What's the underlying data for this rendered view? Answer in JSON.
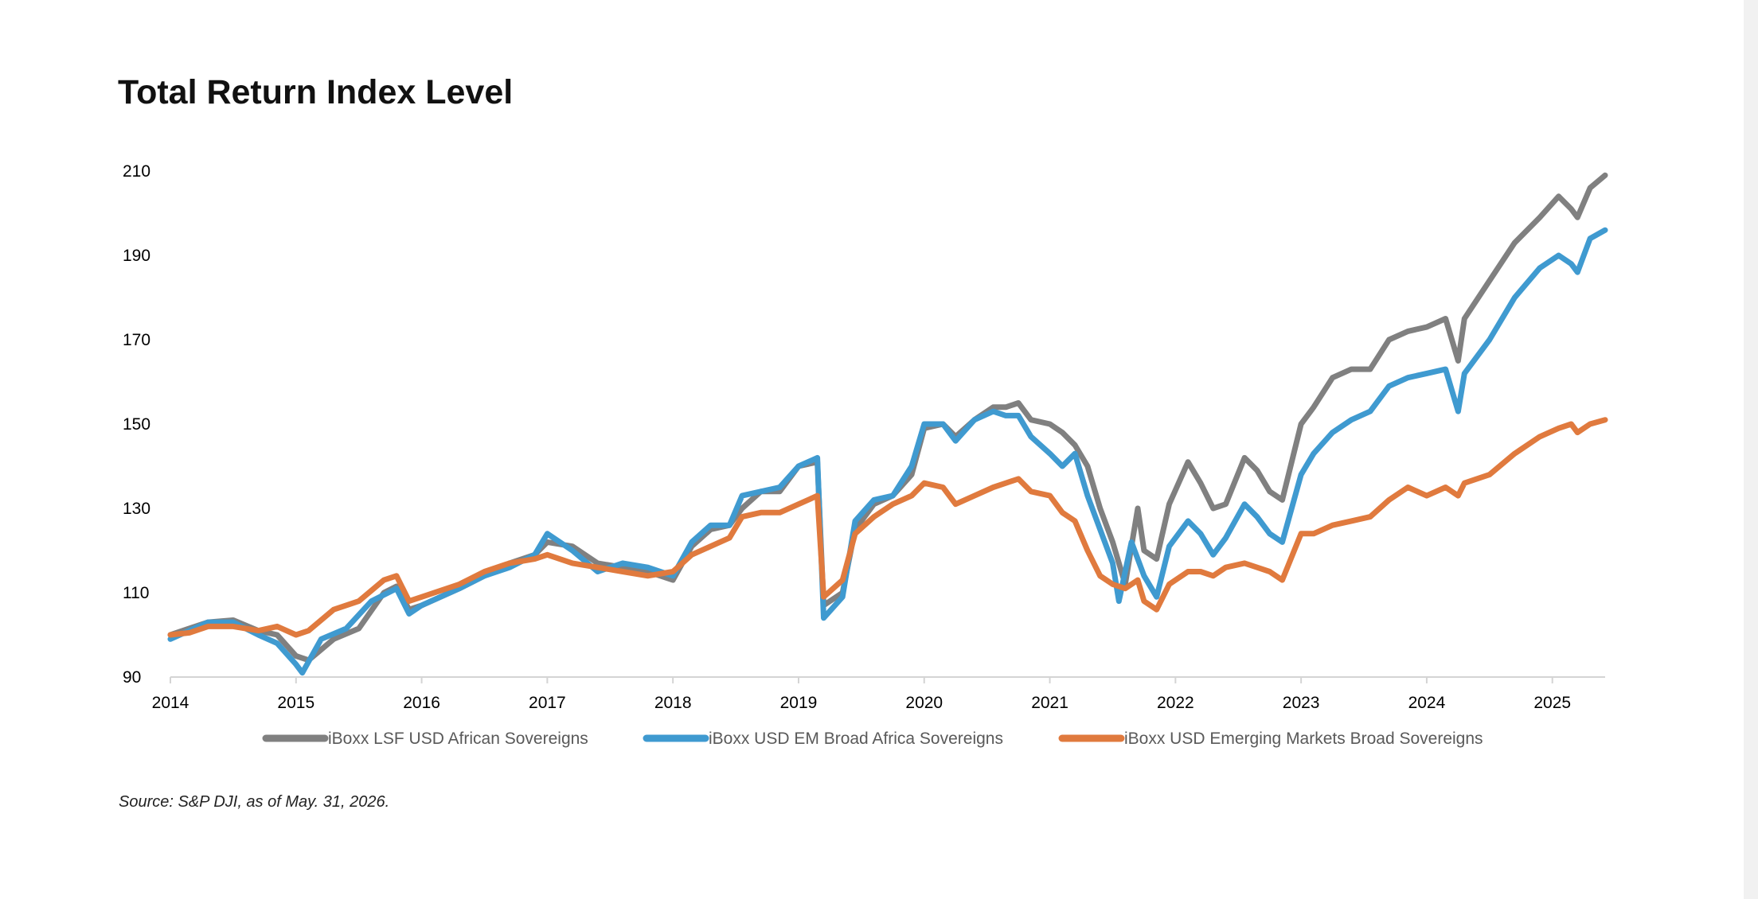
{
  "chart_data": {
    "type": "line",
    "title": "Total Return Index Level",
    "source": "Source: S&P DJI, as of May. 31, 2026.",
    "xlabel": "",
    "ylabel": "",
    "xlim": [
      2014.0,
      2025.42
    ],
    "ylim": [
      90,
      210
    ],
    "x_ticks": [
      "2014",
      "2015",
      "2016",
      "2017",
      "2018",
      "2019",
      "2020",
      "2021",
      "2022",
      "2023",
      "2024",
      "2025"
    ],
    "y_ticks": [
      "90",
      "110",
      "130",
      "150",
      "170",
      "190",
      "210"
    ],
    "grid": false,
    "legend_position": "bottom",
    "series": [
      {
        "name": "iBoxx LSF USD African Sovereigns",
        "color": "#808080",
        "points": [
          [
            2014.0,
            100
          ],
          [
            2014.15,
            101.5
          ],
          [
            2014.3,
            103
          ],
          [
            2014.5,
            103.5
          ],
          [
            2014.7,
            101
          ],
          [
            2014.85,
            100
          ],
          [
            2015.0,
            95
          ],
          [
            2015.1,
            94
          ],
          [
            2015.3,
            99
          ],
          [
            2015.5,
            101.5
          ],
          [
            2015.7,
            110
          ],
          [
            2015.8,
            111.5
          ],
          [
            2015.9,
            106
          ],
          [
            2016.0,
            107
          ],
          [
            2016.3,
            111
          ],
          [
            2016.5,
            114
          ],
          [
            2016.7,
            117
          ],
          [
            2016.9,
            119
          ],
          [
            2017.0,
            122
          ],
          [
            2017.2,
            121
          ],
          [
            2017.4,
            117
          ],
          [
            2017.6,
            116
          ],
          [
            2017.8,
            115
          ],
          [
            2018.0,
            113
          ],
          [
            2018.15,
            121
          ],
          [
            2018.3,
            125
          ],
          [
            2018.45,
            126
          ],
          [
            2018.55,
            130
          ],
          [
            2018.7,
            134
          ],
          [
            2018.85,
            134
          ],
          [
            2019.0,
            140
          ],
          [
            2019.15,
            141
          ],
          [
            2019.2,
            107
          ],
          [
            2019.35,
            110
          ],
          [
            2019.45,
            125
          ],
          [
            2019.6,
            131
          ],
          [
            2019.75,
            133
          ],
          [
            2019.9,
            138
          ],
          [
            2020.0,
            149
          ],
          [
            2020.15,
            150
          ],
          [
            2020.25,
            147
          ],
          [
            2020.4,
            151
          ],
          [
            2020.55,
            154
          ],
          [
            2020.65,
            154
          ],
          [
            2020.75,
            155
          ],
          [
            2020.85,
            151
          ],
          [
            2021.0,
            150
          ],
          [
            2021.1,
            148
          ],
          [
            2021.2,
            145
          ],
          [
            2021.3,
            140
          ],
          [
            2021.4,
            130
          ],
          [
            2021.5,
            122
          ],
          [
            2021.6,
            112
          ],
          [
            2021.7,
            130
          ],
          [
            2021.75,
            120
          ],
          [
            2021.85,
            118
          ],
          [
            2021.95,
            131
          ],
          [
            2022.1,
            141
          ],
          [
            2022.2,
            136
          ],
          [
            2022.3,
            130
          ],
          [
            2022.4,
            131
          ],
          [
            2022.55,
            142
          ],
          [
            2022.65,
            139
          ],
          [
            2022.75,
            134
          ],
          [
            2022.85,
            132
          ],
          [
            2023.0,
            150
          ],
          [
            2023.1,
            154
          ],
          [
            2023.25,
            161
          ],
          [
            2023.4,
            163
          ],
          [
            2023.55,
            163
          ],
          [
            2023.7,
            170
          ],
          [
            2023.85,
            172
          ],
          [
            2024.0,
            173
          ],
          [
            2024.15,
            175
          ],
          [
            2024.25,
            165
          ],
          [
            2024.3,
            175
          ],
          [
            2024.5,
            184
          ],
          [
            2024.7,
            193
          ],
          [
            2024.9,
            199
          ],
          [
            2025.05,
            204
          ],
          [
            2025.15,
            201
          ],
          [
            2025.2,
            199
          ],
          [
            2025.3,
            206
          ],
          [
            2025.42,
            209
          ]
        ]
      },
      {
        "name": "iBoxx USD EM Broad Africa Sovereigns",
        "color": "#3f9ad0",
        "points": [
          [
            2014.0,
            99
          ],
          [
            2014.15,
            101
          ],
          [
            2014.3,
            103
          ],
          [
            2014.5,
            103
          ],
          [
            2014.7,
            100
          ],
          [
            2014.85,
            98
          ],
          [
            2015.0,
            93
          ],
          [
            2015.05,
            91
          ],
          [
            2015.2,
            99
          ],
          [
            2015.4,
            101.5
          ],
          [
            2015.6,
            108
          ],
          [
            2015.8,
            111
          ],
          [
            2015.9,
            105
          ],
          [
            2016.0,
            107
          ],
          [
            2016.3,
            111
          ],
          [
            2016.5,
            114
          ],
          [
            2016.7,
            116
          ],
          [
            2016.9,
            119
          ],
          [
            2017.0,
            124
          ],
          [
            2017.2,
            120
          ],
          [
            2017.4,
            115
          ],
          [
            2017.6,
            117
          ],
          [
            2017.8,
            116
          ],
          [
            2018.0,
            114
          ],
          [
            2018.15,
            122
          ],
          [
            2018.3,
            126
          ],
          [
            2018.45,
            126
          ],
          [
            2018.55,
            133
          ],
          [
            2018.7,
            134
          ],
          [
            2018.85,
            135
          ],
          [
            2019.0,
            140
          ],
          [
            2019.15,
            142
          ],
          [
            2019.2,
            104
          ],
          [
            2019.35,
            109
          ],
          [
            2019.45,
            127
          ],
          [
            2019.6,
            132
          ],
          [
            2019.75,
            133
          ],
          [
            2019.9,
            140
          ],
          [
            2020.0,
            150
          ],
          [
            2020.15,
            150
          ],
          [
            2020.25,
            146
          ],
          [
            2020.4,
            151
          ],
          [
            2020.55,
            153
          ],
          [
            2020.65,
            152
          ],
          [
            2020.75,
            152
          ],
          [
            2020.85,
            147
          ],
          [
            2021.0,
            143
          ],
          [
            2021.1,
            140
          ],
          [
            2021.2,
            143
          ],
          [
            2021.3,
            133
          ],
          [
            2021.4,
            125
          ],
          [
            2021.5,
            117
          ],
          [
            2021.55,
            108
          ],
          [
            2021.65,
            122
          ],
          [
            2021.75,
            114
          ],
          [
            2021.85,
            109
          ],
          [
            2021.95,
            121
          ],
          [
            2022.1,
            127
          ],
          [
            2022.2,
            124
          ],
          [
            2022.3,
            119
          ],
          [
            2022.4,
            123
          ],
          [
            2022.55,
            131
          ],
          [
            2022.65,
            128
          ],
          [
            2022.75,
            124
          ],
          [
            2022.85,
            122
          ],
          [
            2023.0,
            138
          ],
          [
            2023.1,
            143
          ],
          [
            2023.25,
            148
          ],
          [
            2023.4,
            151
          ],
          [
            2023.55,
            153
          ],
          [
            2023.7,
            159
          ],
          [
            2023.85,
            161
          ],
          [
            2024.0,
            162
          ],
          [
            2024.15,
            163
          ],
          [
            2024.25,
            153
          ],
          [
            2024.3,
            162
          ],
          [
            2024.5,
            170
          ],
          [
            2024.7,
            180
          ],
          [
            2024.9,
            187
          ],
          [
            2025.05,
            190
          ],
          [
            2025.15,
            188
          ],
          [
            2025.2,
            186
          ],
          [
            2025.3,
            194
          ],
          [
            2025.42,
            196
          ]
        ]
      },
      {
        "name": "iBoxx USD Emerging Markets Broad Sovereigns",
        "color": "#e07a3e",
        "points": [
          [
            2014.0,
            100
          ],
          [
            2014.15,
            100.5
          ],
          [
            2014.3,
            102
          ],
          [
            2014.5,
            102
          ],
          [
            2014.7,
            101
          ],
          [
            2014.85,
            102
          ],
          [
            2015.0,
            100
          ],
          [
            2015.1,
            101
          ],
          [
            2015.3,
            106
          ],
          [
            2015.5,
            108
          ],
          [
            2015.7,
            113
          ],
          [
            2015.8,
            114
          ],
          [
            2015.9,
            108
          ],
          [
            2016.0,
            109
          ],
          [
            2016.3,
            112
          ],
          [
            2016.5,
            115
          ],
          [
            2016.7,
            117
          ],
          [
            2016.9,
            118
          ],
          [
            2017.0,
            119
          ],
          [
            2017.2,
            117
          ],
          [
            2017.4,
            116
          ],
          [
            2017.6,
            115
          ],
          [
            2017.8,
            114
          ],
          [
            2018.0,
            115
          ],
          [
            2018.15,
            119
          ],
          [
            2018.3,
            121
          ],
          [
            2018.45,
            123
          ],
          [
            2018.55,
            128
          ],
          [
            2018.7,
            129
          ],
          [
            2018.85,
            129
          ],
          [
            2019.0,
            131
          ],
          [
            2019.15,
            133
          ],
          [
            2019.2,
            109
          ],
          [
            2019.35,
            113
          ],
          [
            2019.45,
            124
          ],
          [
            2019.6,
            128
          ],
          [
            2019.75,
            131
          ],
          [
            2019.9,
            133
          ],
          [
            2020.0,
            136
          ],
          [
            2020.15,
            135
          ],
          [
            2020.25,
            131
          ],
          [
            2020.4,
            133
          ],
          [
            2020.55,
            135
          ],
          [
            2020.65,
            136
          ],
          [
            2020.75,
            137
          ],
          [
            2020.85,
            134
          ],
          [
            2021.0,
            133
          ],
          [
            2021.1,
            129
          ],
          [
            2021.2,
            127
          ],
          [
            2021.3,
            120
          ],
          [
            2021.4,
            114
          ],
          [
            2021.5,
            112
          ],
          [
            2021.6,
            111
          ],
          [
            2021.7,
            113
          ],
          [
            2021.75,
            108
          ],
          [
            2021.85,
            106
          ],
          [
            2021.95,
            112
          ],
          [
            2022.1,
            115
          ],
          [
            2022.2,
            115
          ],
          [
            2022.3,
            114
          ],
          [
            2022.4,
            116
          ],
          [
            2022.55,
            117
          ],
          [
            2022.65,
            116
          ],
          [
            2022.75,
            115
          ],
          [
            2022.85,
            113
          ],
          [
            2023.0,
            124
          ],
          [
            2023.1,
            124
          ],
          [
            2023.25,
            126
          ],
          [
            2023.4,
            127
          ],
          [
            2023.55,
            128
          ],
          [
            2023.7,
            132
          ],
          [
            2023.85,
            135
          ],
          [
            2024.0,
            133
          ],
          [
            2024.15,
            135
          ],
          [
            2024.25,
            133
          ],
          [
            2024.3,
            136
          ],
          [
            2024.5,
            138
          ],
          [
            2024.7,
            143
          ],
          [
            2024.9,
            147
          ],
          [
            2025.05,
            149
          ],
          [
            2025.15,
            150
          ],
          [
            2025.2,
            148
          ],
          [
            2025.3,
            150
          ],
          [
            2025.42,
            151
          ]
        ]
      }
    ]
  }
}
